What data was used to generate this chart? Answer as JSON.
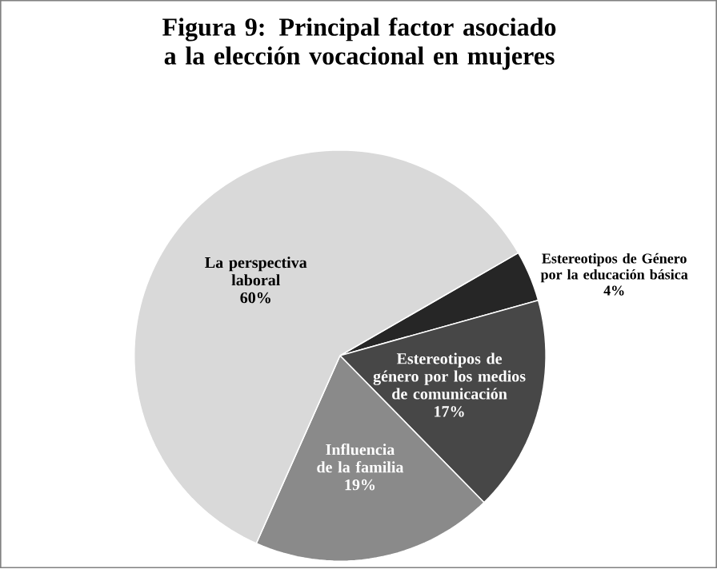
{
  "chart_data": {
    "type": "pie",
    "title": "Figura 9: Principal factor asociado a la elección vocacional en mujeres",
    "categories": [
      "Estereotipos de Género por la educación básica",
      "Estereotipos de género por los medios de comunicación",
      "Influencia de la familia",
      "La perspectiva laboral"
    ],
    "values": [
      4,
      17,
      19,
      60
    ],
    "value_labels": [
      "4%",
      "17%",
      "19%",
      "60%"
    ],
    "colors": [
      "#262626",
      "#474747",
      "#8a8a8a",
      "#d9d9d9"
    ]
  }
}
